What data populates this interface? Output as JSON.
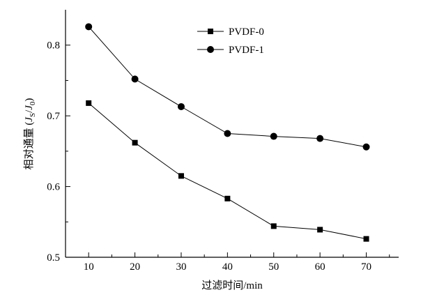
{
  "chart_data": {
    "type": "line",
    "title": "",
    "xlabel": "过滤时间/min",
    "ylabel": "相对通量 (JS/J0)",
    "ylabel_parts": {
      "prefix": "相对通量 (",
      "j1": "J",
      "sub1": "S",
      "slash": "/",
      "j2": "J",
      "sub2": "0",
      "suffix": ")"
    },
    "x": [
      10,
      20,
      30,
      40,
      50,
      60,
      70
    ],
    "xlim": [
      5,
      77
    ],
    "ylim": [
      0.5,
      0.85
    ],
    "xticks": [
      10,
      20,
      30,
      40,
      50,
      60,
      70
    ],
    "yticks": [
      0.5,
      0.6,
      0.7,
      0.8
    ],
    "ytick_labels": [
      "0.5",
      "0.6",
      "0.7",
      "0.8"
    ],
    "grid": false,
    "legend_position": "top-center",
    "series": [
      {
        "name": "PVDF-0",
        "marker": "square",
        "color": "#000000",
        "values": [
          0.718,
          0.662,
          0.615,
          0.583,
          0.544,
          0.539,
          0.526
        ]
      },
      {
        "name": "PVDF-1",
        "marker": "circle",
        "color": "#000000",
        "values": [
          0.826,
          0.752,
          0.713,
          0.675,
          0.671,
          0.668,
          0.656
        ]
      }
    ]
  }
}
